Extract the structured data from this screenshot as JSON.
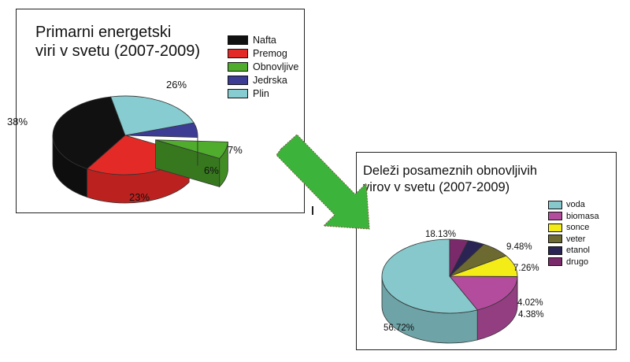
{
  "colors": {
    "nafta": "#111111",
    "premog": "#e42a26",
    "obnovljive": "#4fac2c",
    "jedrska": "#3c3c94",
    "plin": "#86ccd0",
    "voda": "#86c8cc",
    "biomasa": "#b44c9e",
    "sonce": "#f4ec16",
    "veter": "#6c6a30",
    "etanol": "#2a2454",
    "drugo": "#7a2a6a",
    "arrow": "#3cb43c"
  },
  "chart_data": [
    {
      "type": "pie",
      "style": "3d-exploded",
      "title_lines": [
        "Primarni energetski",
        "viri v svetu (2007-2009)"
      ],
      "legend_position": "top-right",
      "labels": [
        "Nafta",
        "Premog",
        "Obnovljive",
        "Jedrska",
        "Plin"
      ],
      "values": [
        38,
        26,
        7,
        6,
        23
      ],
      "value_labels": [
        "38%",
        "26%",
        "7%",
        "6%",
        "23%"
      ],
      "exploded": [
        "Obnovljive"
      ]
    },
    {
      "type": "pie",
      "style": "3d",
      "title_lines": [
        "Deleži posameznih obnovljivih",
        "virov v svetu (2007-2009)"
      ],
      "legend_position": "top-right",
      "labels": [
        "voda",
        "biomasa",
        "sonce",
        "veter",
        "etanol",
        "drugo"
      ],
      "values": [
        56.72,
        18.13,
        9.48,
        7.26,
        4.02,
        4.38
      ],
      "value_labels": [
        "56.72%",
        "18.13%",
        "9.48%",
        "7.26%",
        "4.02%",
        "4.38%"
      ]
    }
  ]
}
